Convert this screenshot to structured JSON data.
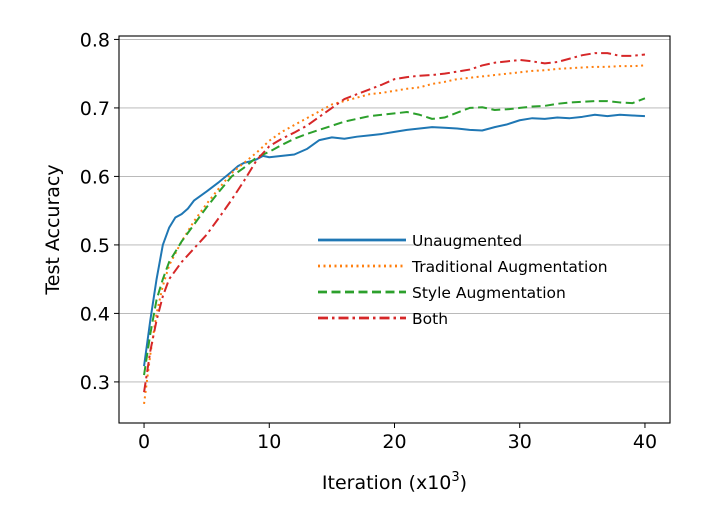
{
  "chart_data": {
    "type": "line",
    "title": "",
    "xlabel": "Iteration (x10",
    "xlabel_sup": "3",
    "xlabel_tail": ")",
    "ylabel": "Test Accuracy",
    "xlim": [
      -2,
      42
    ],
    "ylim": [
      0.24,
      0.805
    ],
    "xticks": [
      0,
      10,
      20,
      30,
      40
    ],
    "xtick_labels": [
      "0",
      "10",
      "20",
      "30",
      "40"
    ],
    "yticks": [
      0.3,
      0.4,
      0.5,
      0.6,
      0.7,
      0.8
    ],
    "ytick_labels": [
      "0.3",
      "0.4",
      "0.5",
      "0.6",
      "0.7",
      "0.8"
    ],
    "grid": "horizontal",
    "legend_position": "center-right",
    "series": [
      {
        "name": "Unaugmented",
        "color": "#1f77b4",
        "dash": "solid",
        "x": [
          0,
          0.5,
          1,
          1.5,
          2,
          2.5,
          3,
          3.5,
          4,
          5,
          6,
          7,
          7.5,
          8,
          8.5,
          9,
          9.5,
          10,
          11,
          12,
          13,
          14,
          15,
          16,
          17,
          18,
          19,
          20,
          21,
          22,
          23,
          24,
          25,
          26,
          27,
          28,
          29,
          30,
          31,
          32,
          33,
          34,
          35,
          36,
          37,
          38,
          39,
          40
        ],
        "y": [
          0.323,
          0.39,
          0.45,
          0.5,
          0.525,
          0.54,
          0.545,
          0.553,
          0.565,
          0.578,
          0.592,
          0.607,
          0.615,
          0.62,
          0.622,
          0.625,
          0.63,
          0.628,
          0.63,
          0.632,
          0.64,
          0.653,
          0.657,
          0.655,
          0.658,
          0.66,
          0.662,
          0.665,
          0.668,
          0.67,
          0.672,
          0.671,
          0.67,
          0.668,
          0.667,
          0.672,
          0.676,
          0.682,
          0.685,
          0.684,
          0.686,
          0.685,
          0.687,
          0.69,
          0.688,
          0.69,
          0.689,
          0.688
        ]
      },
      {
        "name": "Traditional Augmentation",
        "color": "#ff7f0e",
        "dash": "dotted",
        "x": [
          0,
          0.5,
          1,
          1.5,
          2,
          3,
          4,
          5,
          6,
          7,
          8,
          9,
          10,
          11,
          12,
          13,
          14,
          15,
          16,
          17,
          18,
          19,
          20,
          21,
          22,
          23,
          24,
          25,
          26,
          27,
          28,
          29,
          30,
          31,
          32,
          33,
          34,
          35,
          36,
          37,
          38,
          39,
          40
        ],
        "y": [
          0.268,
          0.34,
          0.4,
          0.44,
          0.47,
          0.505,
          0.535,
          0.56,
          0.583,
          0.605,
          0.62,
          0.635,
          0.652,
          0.665,
          0.675,
          0.685,
          0.695,
          0.705,
          0.71,
          0.715,
          0.72,
          0.722,
          0.725,
          0.728,
          0.73,
          0.735,
          0.738,
          0.742,
          0.744,
          0.746,
          0.748,
          0.75,
          0.752,
          0.754,
          0.755,
          0.757,
          0.758,
          0.759,
          0.76,
          0.76,
          0.761,
          0.761,
          0.762
        ]
      },
      {
        "name": "Style Augmentation",
        "color": "#2ca02c",
        "dash": "dashed",
        "x": [
          0,
          0.5,
          1,
          1.5,
          2,
          3,
          4,
          5,
          6,
          7,
          8,
          9,
          10,
          11,
          12,
          13,
          14,
          15,
          16,
          17,
          18,
          19,
          20,
          21,
          22,
          23,
          24,
          25,
          26,
          27,
          28,
          29,
          30,
          31,
          32,
          33,
          34,
          35,
          36,
          37,
          38,
          39,
          40
        ],
        "y": [
          0.31,
          0.37,
          0.42,
          0.45,
          0.475,
          0.505,
          0.53,
          0.555,
          0.578,
          0.6,
          0.613,
          0.628,
          0.636,
          0.646,
          0.655,
          0.662,
          0.668,
          0.674,
          0.68,
          0.684,
          0.688,
          0.69,
          0.692,
          0.694,
          0.69,
          0.684,
          0.686,
          0.693,
          0.7,
          0.701,
          0.697,
          0.698,
          0.7,
          0.702,
          0.703,
          0.706,
          0.708,
          0.709,
          0.71,
          0.71,
          0.708,
          0.707,
          0.714
        ]
      },
      {
        "name": "Both",
        "color": "#d62728",
        "dash": "dashdot",
        "x": [
          0,
          0.5,
          1,
          1.5,
          2,
          3,
          4,
          5,
          6,
          7,
          8,
          9,
          10,
          11,
          12,
          13,
          14,
          15,
          16,
          17,
          18,
          19,
          20,
          21,
          22,
          23,
          24,
          25,
          26,
          27,
          28,
          29,
          30,
          31,
          32,
          33,
          34,
          35,
          36,
          37,
          38,
          39,
          40
        ],
        "y": [
          0.285,
          0.345,
          0.39,
          0.425,
          0.45,
          0.475,
          0.495,
          0.515,
          0.54,
          0.566,
          0.594,
          0.624,
          0.644,
          0.655,
          0.664,
          0.674,
          0.687,
          0.7,
          0.713,
          0.72,
          0.727,
          0.734,
          0.742,
          0.745,
          0.747,
          0.748,
          0.75,
          0.753,
          0.756,
          0.762,
          0.766,
          0.768,
          0.77,
          0.768,
          0.765,
          0.767,
          0.772,
          0.777,
          0.78,
          0.78,
          0.776,
          0.776,
          0.778
        ]
      }
    ]
  }
}
